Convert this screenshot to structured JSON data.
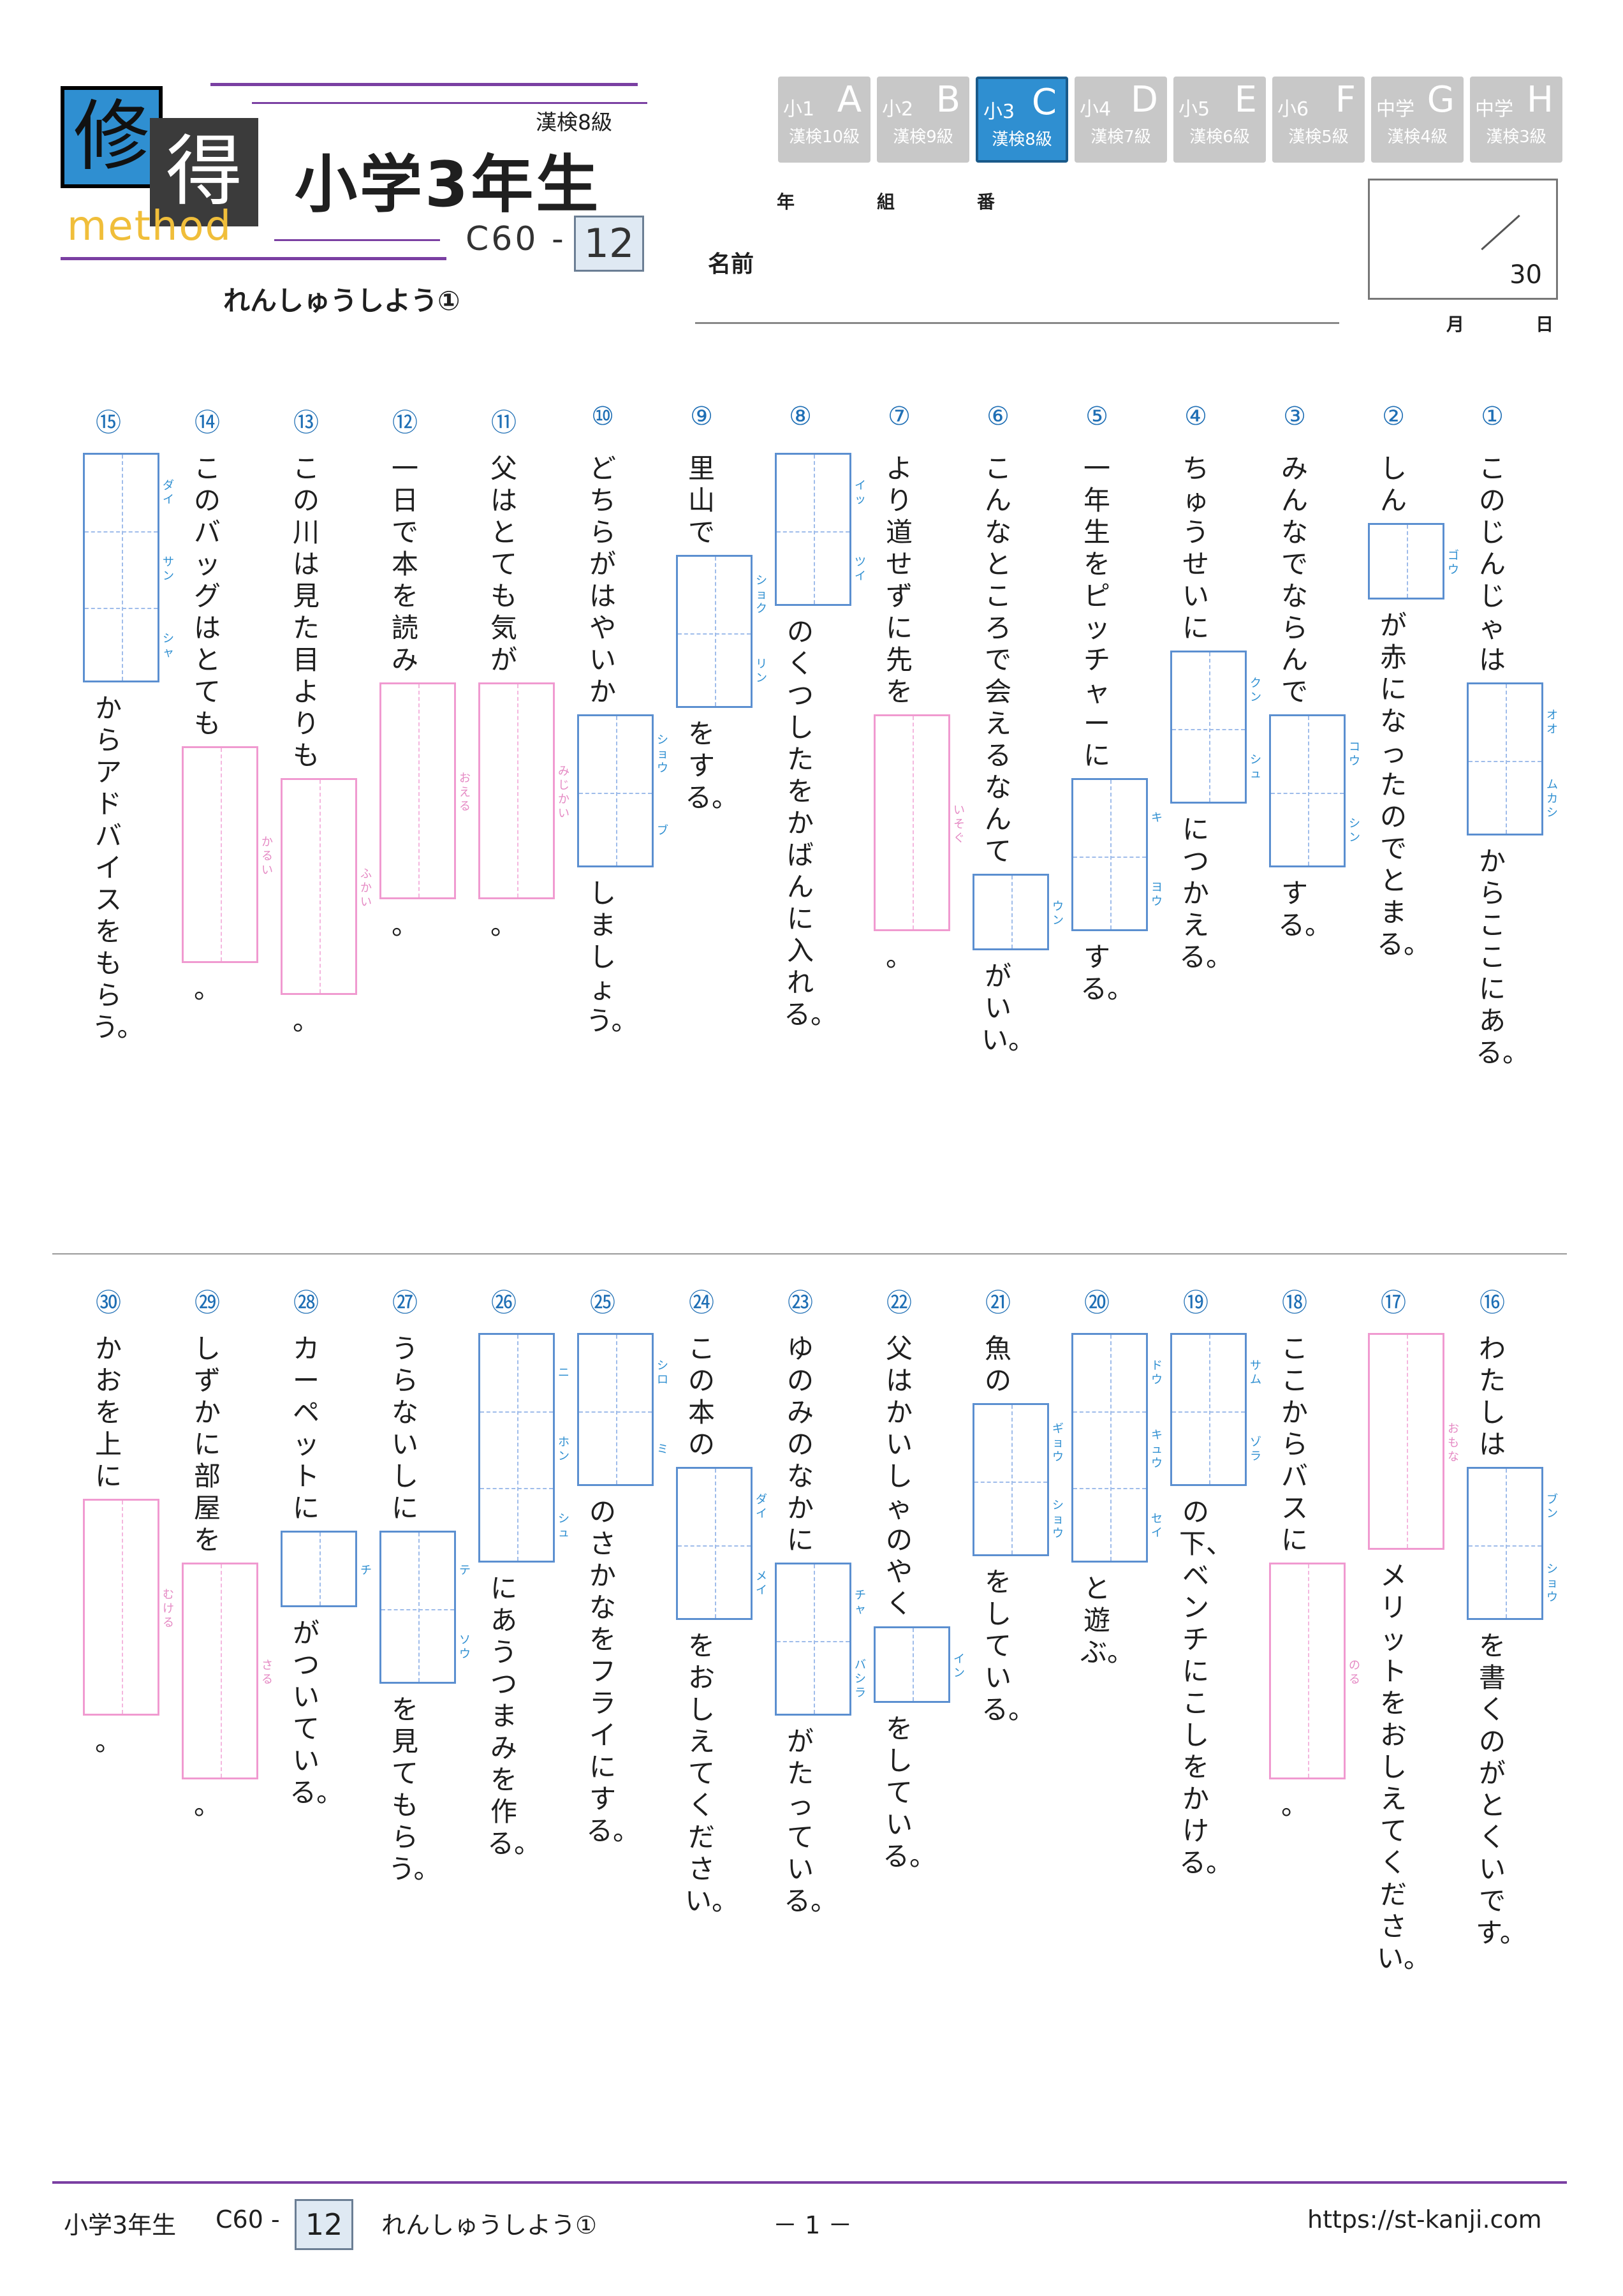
{
  "header": {
    "logo_top": "修",
    "logo_bottom": "得",
    "logo_sub": "method",
    "kanken": "漢検8級",
    "grade_title": "小学3年生",
    "code": "C60 -",
    "number": "12",
    "subtitle": "れんしゅうしよう①",
    "year": "年",
    "class": "組",
    "seat": "番",
    "name_label": "名前",
    "score_total": "30",
    "month": "月",
    "day": "日"
  },
  "grades": [
    {
      "a": "小1",
      "b": "A",
      "c": "漢検10級"
    },
    {
      "a": "小2",
      "b": "B",
      "c": "漢検9級"
    },
    {
      "a": "小3",
      "b": "C",
      "c": "漢検8級",
      "active": true
    },
    {
      "a": "小4",
      "b": "D",
      "c": "漢検7級"
    },
    {
      "a": "小5",
      "b": "E",
      "c": "漢検6級"
    },
    {
      "a": "小6",
      "b": "F",
      "c": "漢検5級"
    },
    {
      "a": "中学",
      "b": "G",
      "c": "漢検4級"
    },
    {
      "a": "中学",
      "b": "H",
      "c": "漢検3級"
    }
  ],
  "questions": [
    {
      "n": "①",
      "parts": [
        {
          "t": "このじんじゃは"
        },
        {
          "box": 2,
          "r": [
            "オオ",
            "ムカシ"
          ]
        },
        {
          "t": "からここにある。"
        }
      ]
    },
    {
      "n": "②",
      "parts": [
        {
          "t": "しん"
        },
        {
          "box": 1,
          "r": [
            "ゴウ"
          ]
        },
        {
          "t": "が赤になったのでとまる。"
        }
      ]
    },
    {
      "n": "③",
      "parts": [
        {
          "t": "みんなでならんで"
        },
        {
          "box": 2,
          "r": [
            "コウ",
            "シン"
          ]
        },
        {
          "t": "する。"
        }
      ]
    },
    {
      "n": "④",
      "parts": [
        {
          "t": "ちゅうせいに"
        },
        {
          "box": 2,
          "r": [
            "クン",
            "シュ"
          ]
        },
        {
          "t": "につかえる。"
        }
      ]
    },
    {
      "n": "⑤",
      "parts": [
        {
          "t": "一年生をピッチャーに"
        },
        {
          "box": 2,
          "r": [
            "キ",
            "ヨウ"
          ]
        },
        {
          "t": "する。"
        }
      ]
    },
    {
      "n": "⑥",
      "parts": [
        {
          "t": "こんなところで会えるなんて"
        },
        {
          "box": 1,
          "r": [
            "ウン"
          ]
        },
        {
          "t": "がいい。"
        }
      ]
    },
    {
      "n": "⑦",
      "parts": [
        {
          "t": "より道せずに先を"
        },
        {
          "pbox": 1,
          "r": [
            "いそぐ"
          ]
        },
        {
          "t": "。"
        }
      ]
    },
    {
      "n": "⑧",
      "parts": [
        {
          "box": 2,
          "r": [
            "イッ",
            "ツイ"
          ]
        },
        {
          "t": "のくつしたをかばんに入れる。"
        }
      ]
    },
    {
      "n": "⑨",
      "parts": [
        {
          "t": "里山で"
        },
        {
          "box": 2,
          "r": [
            "ショク",
            "リン"
          ]
        },
        {
          "t": "をする。"
        }
      ]
    },
    {
      "n": "⑩",
      "parts": [
        {
          "t": "どちらがはやいか"
        },
        {
          "box": 2,
          "r": [
            "ショウ",
            "ブ"
          ]
        },
        {
          "t": "しましょう。"
        }
      ]
    },
    {
      "n": "⑪",
      "parts": [
        {
          "t": "父はとても気が"
        },
        {
          "pbox": 1,
          "r": [
            "みじかい"
          ]
        },
        {
          "t": "。"
        }
      ]
    },
    {
      "n": "⑫",
      "parts": [
        {
          "t": "一日で本を読み"
        },
        {
          "pbox": 1,
          "r": [
            "おえる"
          ]
        },
        {
          "t": "。"
        }
      ]
    },
    {
      "n": "⑬",
      "parts": [
        {
          "t": "この川は見た目よりも"
        },
        {
          "pbox": 1,
          "r": [
            "ふかい"
          ]
        },
        {
          "t": "。"
        }
      ]
    },
    {
      "n": "⑭",
      "parts": [
        {
          "t": "このバッグはとても"
        },
        {
          "pbox": 1,
          "r": [
            "かるい"
          ]
        },
        {
          "t": "。"
        }
      ]
    },
    {
      "n": "⑮",
      "parts": [
        {
          "box": 3,
          "r": [
            "ダイ",
            "サン",
            "シャ"
          ]
        },
        {
          "t": "からアドバイスをもらう。"
        }
      ]
    },
    {
      "n": "⑯",
      "parts": [
        {
          "t": "わたしは"
        },
        {
          "box": 2,
          "r": [
            "ブン",
            "ショウ"
          ]
        },
        {
          "t": "を書くのがとくいです。"
        }
      ]
    },
    {
      "n": "⑰",
      "parts": [
        {
          "pbox": 1,
          "r": [
            "おもな"
          ]
        },
        {
          "t": "メリットをおしえてください。"
        }
      ]
    },
    {
      "n": "⑱",
      "parts": [
        {
          "t": "ここからバスに"
        },
        {
          "pbox": 1,
          "r": [
            "のる"
          ]
        },
        {
          "t": "。"
        }
      ]
    },
    {
      "n": "⑲",
      "parts": [
        {
          "box": 2,
          "r": [
            "サム",
            "ゾラ"
          ]
        },
        {
          "t": "の下、ベンチにこしをかける。"
        }
      ]
    },
    {
      "n": "⑳",
      "parts": [
        {
          "box": 3,
          "r": [
            "ドウ",
            "キュウ",
            "セイ"
          ]
        },
        {
          "t": "と遊ぶ。"
        }
      ]
    },
    {
      "n": "㉑",
      "parts": [
        {
          "t": "魚の"
        },
        {
          "box": 2,
          "r": [
            "ギョウ",
            "ショウ"
          ]
        },
        {
          "t": "をしている。"
        }
      ]
    },
    {
      "n": "㉒",
      "parts": [
        {
          "t": "父はかいしゃのやく"
        },
        {
          "box": 1,
          "r": [
            "イン"
          ]
        },
        {
          "t": "をしている。"
        }
      ]
    },
    {
      "n": "㉓",
      "parts": [
        {
          "t": "ゆのみのなかに"
        },
        {
          "box": 2,
          "r": [
            "チャ",
            "バシラ"
          ]
        },
        {
          "t": "がたっている。"
        }
      ]
    },
    {
      "n": "㉔",
      "parts": [
        {
          "t": "この本の"
        },
        {
          "box": 2,
          "r": [
            "ダイ",
            "メイ"
          ]
        },
        {
          "t": "をおしえてください。"
        }
      ]
    },
    {
      "n": "㉕",
      "parts": [
        {
          "box": 2,
          "r": [
            "シロ",
            "ミ"
          ]
        },
        {
          "t": "のさかなをフライにする。"
        }
      ]
    },
    {
      "n": "㉖",
      "parts": [
        {
          "box": 3,
          "r": [
            "ニ",
            "ホン",
            "シュ"
          ]
        },
        {
          "t": "にあうつまみを作る。"
        }
      ]
    },
    {
      "n": "㉗",
      "parts": [
        {
          "t": "うらないしに"
        },
        {
          "box": 2,
          "r": [
            "テ",
            "ソウ"
          ]
        },
        {
          "t": "を見てもらう。"
        }
      ]
    },
    {
      "n": "㉘",
      "parts": [
        {
          "t": "カーペットに"
        },
        {
          "box": 1,
          "r": [
            "チ"
          ]
        },
        {
          "t": "がついている。"
        }
      ]
    },
    {
      "n": "㉙",
      "parts": [
        {
          "t": "しずかに部屋を"
        },
        {
          "pbox": 1,
          "r": [
            "さる"
          ]
        },
        {
          "t": "。"
        }
      ]
    },
    {
      "n": "㉚",
      "parts": [
        {
          "t": "かおを上に"
        },
        {
          "pbox": 1,
          "r": [
            "むける"
          ]
        },
        {
          "t": "。"
        }
      ]
    }
  ],
  "footer": {
    "grade": "小学3年生",
    "code": "C60 -",
    "number": "12",
    "title": "れんしゅうしよう①",
    "page": "－ 1 －",
    "url": "https://st-kanji.com"
  },
  "colors": {
    "accent": "#7a3fa2",
    "blue": "#2f8fd1",
    "pink": "#f09ad0"
  }
}
